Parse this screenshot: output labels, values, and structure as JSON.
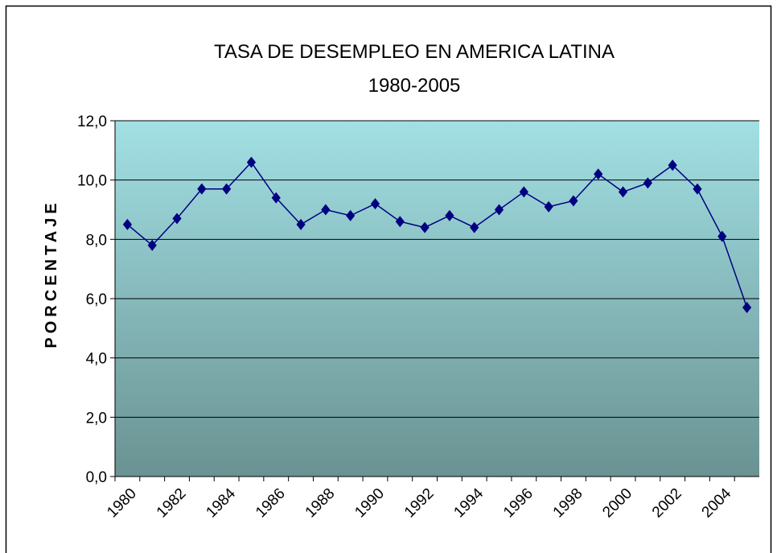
{
  "chart_data": {
    "type": "line",
    "title": "TASA DE DESEMPLEO EN AMERICA LATINA",
    "subtitle": "1980-2005",
    "y_label": "PORCENTAJE",
    "categories": [
      "1980",
      null,
      "1982",
      null,
      "1984",
      null,
      "1986",
      null,
      "1988",
      null,
      "1990",
      null,
      "1992",
      null,
      "1994",
      null,
      "1996",
      null,
      "1998",
      null,
      "2000",
      null,
      "2002",
      null,
      "2004",
      null
    ],
    "series": [
      {
        "name": "Tasa de desempleo",
        "color": "#000080",
        "values": [
          8.5,
          7.8,
          8.7,
          9.7,
          9.7,
          10.6,
          9.4,
          8.5,
          9.0,
          8.8,
          9.2,
          8.6,
          8.4,
          8.8,
          8.4,
          9.0,
          9.6,
          9.1,
          9.3,
          10.2,
          9.6,
          9.9,
          10.5,
          9.7,
          8.1,
          5.7
        ]
      }
    ],
    "ylim": [
      0,
      12
    ],
    "yticks": [
      {
        "value": 0,
        "label": "0,0"
      },
      {
        "value": 2,
        "label": "2,0"
      },
      {
        "value": 4,
        "label": "4,0"
      },
      {
        "value": 6,
        "label": "6,0"
      },
      {
        "value": 8,
        "label": "8,0"
      },
      {
        "value": 10,
        "label": "10,0"
      },
      {
        "value": 12,
        "label": "12,0"
      }
    ],
    "grid": true
  }
}
